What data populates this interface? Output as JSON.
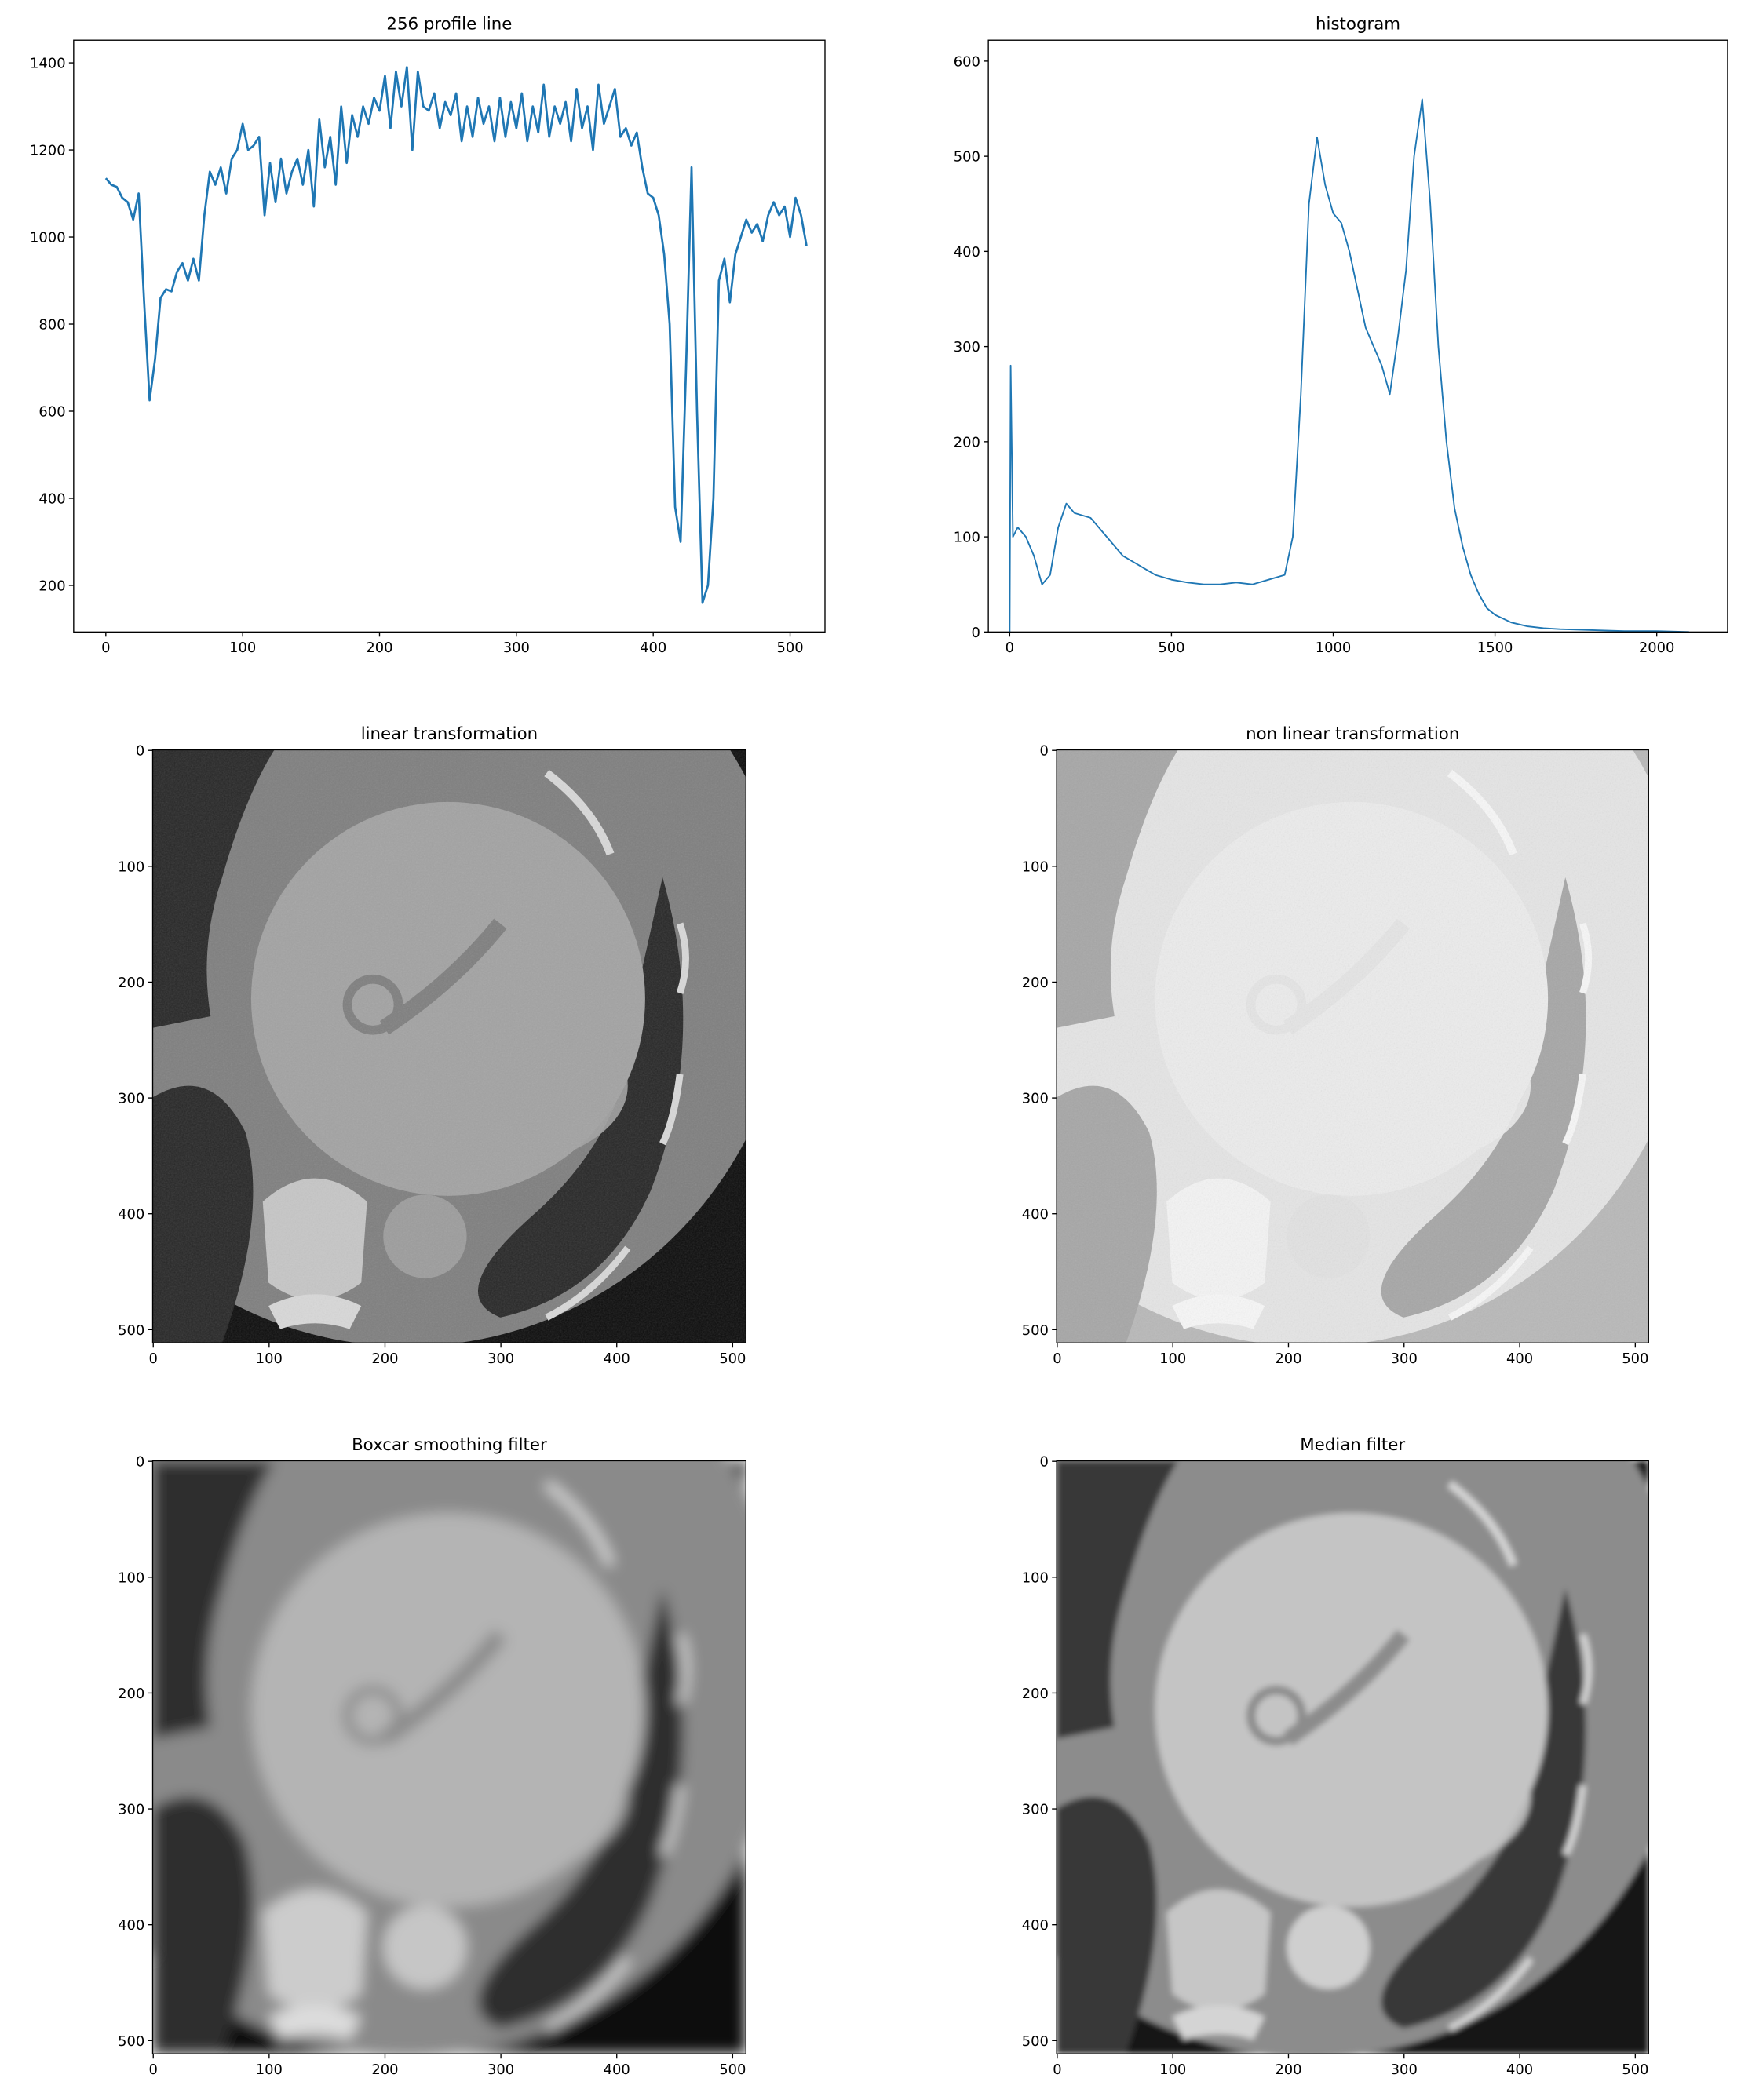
{
  "chart_data": [
    {
      "type": "line",
      "title": "256 profile line",
      "x": [
        0,
        4,
        8,
        12,
        16,
        20,
        24,
        28,
        32,
        36,
        40,
        44,
        48,
        52,
        56,
        60,
        64,
        68,
        72,
        76,
        80,
        84,
        88,
        92,
        96,
        100,
        104,
        108,
        112,
        116,
        120,
        124,
        128,
        132,
        136,
        140,
        144,
        148,
        152,
        156,
        160,
        164,
        168,
        172,
        176,
        180,
        184,
        188,
        192,
        196,
        200,
        204,
        208,
        212,
        216,
        220,
        224,
        228,
        232,
        236,
        240,
        244,
        248,
        252,
        256,
        260,
        264,
        268,
        272,
        276,
        280,
        284,
        288,
        292,
        296,
        300,
        304,
        308,
        312,
        316,
        320,
        324,
        328,
        332,
        336,
        340,
        344,
        348,
        352,
        356,
        360,
        364,
        368,
        372,
        376,
        380,
        384,
        388,
        392,
        396,
        400,
        404,
        408,
        412,
        416,
        420,
        424,
        428,
        432,
        436,
        440,
        444,
        448,
        452,
        456,
        460,
        464,
        468,
        472,
        476,
        480,
        484,
        488,
        492,
        496,
        500,
        504,
        508,
        512
      ],
      "values": [
        1135,
        1120,
        1115,
        1090,
        1080,
        1040,
        1100,
        850,
        625,
        720,
        860,
        880,
        875,
        920,
        940,
        900,
        950,
        900,
        1050,
        1150,
        1120,
        1160,
        1100,
        1180,
        1200,
        1260,
        1200,
        1210,
        1230,
        1050,
        1170,
        1080,
        1180,
        1100,
        1150,
        1180,
        1120,
        1200,
        1070,
        1270,
        1160,
        1230,
        1120,
        1300,
        1170,
        1280,
        1230,
        1300,
        1260,
        1320,
        1290,
        1370,
        1250,
        1380,
        1300,
        1390,
        1200,
        1380,
        1300,
        1290,
        1330,
        1250,
        1310,
        1280,
        1330,
        1220,
        1300,
        1230,
        1320,
        1260,
        1300,
        1220,
        1320,
        1230,
        1310,
        1250,
        1330,
        1220,
        1300,
        1240,
        1350,
        1230,
        1300,
        1260,
        1310,
        1220,
        1340,
        1250,
        1300,
        1200,
        1350,
        1260,
        1300,
        1340,
        1230,
        1250,
        1210,
        1240,
        1160,
        1100,
        1090,
        1050,
        960,
        800,
        380,
        300,
        700,
        1160,
        600,
        160,
        200,
        400,
        900,
        950,
        850,
        960,
        1000,
        1040,
        1010,
        1030,
        990,
        1050,
        1080,
        1050,
        1070,
        1000,
        1090,
        1050,
        980
      ],
      "color": "#1f77b4",
      "xlim": [
        -23.5,
        525.5
      ],
      "ylim": [
        93,
        1452
      ],
      "xticks": [
        0,
        100,
        200,
        300,
        400,
        500
      ],
      "yticks": [
        200,
        400,
        600,
        800,
        1000,
        1200,
        1400
      ]
    },
    {
      "type": "line",
      "title": "histogram",
      "x": [
        0,
        3,
        10,
        25,
        50,
        75,
        100,
        125,
        150,
        175,
        200,
        250,
        300,
        350,
        400,
        450,
        500,
        550,
        600,
        650,
        700,
        750,
        800,
        850,
        875,
        900,
        925,
        950,
        975,
        1000,
        1025,
        1050,
        1075,
        1100,
        1125,
        1150,
        1175,
        1200,
        1225,
        1250,
        1275,
        1300,
        1325,
        1350,
        1375,
        1400,
        1425,
        1450,
        1475,
        1500,
        1550,
        1600,
        1650,
        1700,
        1800,
        1900,
        2000,
        2100
      ],
      "values": [
        0,
        280,
        100,
        110,
        100,
        80,
        50,
        60,
        110,
        135,
        125,
        120,
        100,
        80,
        70,
        60,
        55,
        52,
        50,
        50,
        52,
        50,
        55,
        60,
        100,
        250,
        450,
        520,
        470,
        440,
        430,
        400,
        360,
        320,
        300,
        280,
        250,
        310,
        380,
        500,
        560,
        450,
        300,
        200,
        130,
        90,
        60,
        40,
        25,
        18,
        10,
        6,
        4,
        3,
        2,
        1,
        1,
        0
      ],
      "color": "#1f77b4",
      "xlim": [
        -66,
        2219
      ],
      "ylim": [
        0,
        622
      ],
      "xticks": [
        0,
        500,
        1000,
        1500,
        2000
      ],
      "yticks": [
        0,
        100,
        200,
        300,
        400,
        500,
        600
      ]
    },
    {
      "type": "image",
      "title": "linear transformation",
      "xlim": [
        -0.5,
        511.5
      ],
      "ylim": [
        511.5,
        -0.5
      ],
      "xticks": [
        0,
        100,
        200,
        300,
        400,
        500
      ],
      "yticks": [
        0,
        100,
        200,
        300,
        400,
        500
      ]
    },
    {
      "type": "image",
      "title": "non linear transformation",
      "xlim": [
        -0.5,
        511.5
      ],
      "ylim": [
        511.5,
        -0.5
      ],
      "xticks": [
        0,
        100,
        200,
        300,
        400,
        500
      ],
      "yticks": [
        0,
        100,
        200,
        300,
        400,
        500
      ]
    },
    {
      "type": "image",
      "title": "Boxcar smoothing filter",
      "xlim": [
        -0.5,
        511.5
      ],
      "ylim": [
        511.5,
        -0.5
      ],
      "xticks": [
        0,
        100,
        200,
        300,
        400,
        500
      ],
      "yticks": [
        0,
        100,
        200,
        300,
        400,
        500
      ]
    },
    {
      "type": "image",
      "title": "Median filter",
      "xlim": [
        -0.5,
        511.5
      ],
      "ylim": [
        511.5,
        -0.5
      ],
      "xticks": [
        0,
        100,
        200,
        300,
        400,
        500
      ],
      "yticks": [
        0,
        100,
        200,
        300,
        400,
        500
      ]
    }
  ]
}
